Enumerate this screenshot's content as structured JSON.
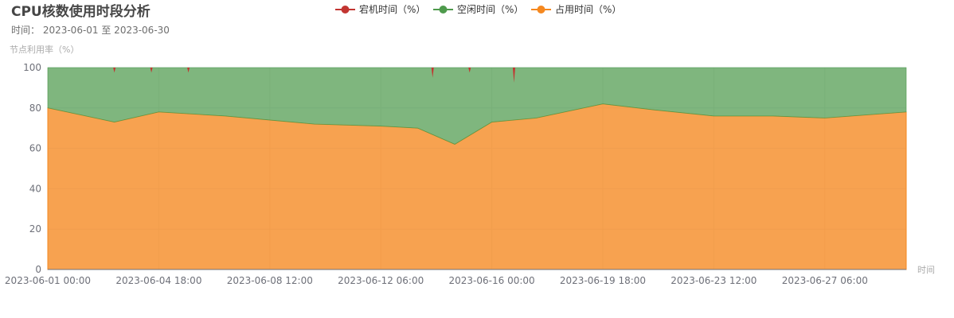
{
  "title": "CPU核数使用时段分析",
  "subtitle": "时间： 2023-06-01 至 2023-06-30",
  "chart_data": {
    "type": "area",
    "stacked": true,
    "ylabel": "节点利用率（%）",
    "xlabel": "时间",
    "ylim": [
      0,
      100
    ],
    "yticks": [
      0,
      20,
      40,
      60,
      80,
      100
    ],
    "xticks": [
      "2023-06-01 00:00",
      "2023-06-04 18:00",
      "2023-06-08 12:00",
      "2023-06-12 06:00",
      "2023-06-16 00:00",
      "2023-06-19 18:00",
      "2023-06-23 12:00",
      "2023-06-27 06:00"
    ],
    "legend_position": "top-center",
    "series": [
      {
        "name": "宕机时间（%）",
        "color": "#c23531",
        "x": [
          "2023-06-03 06:00",
          "2023-06-04 12:00",
          "2023-06-05 18:00",
          "2023-06-14 00:00",
          "2023-06-15 06:00",
          "2023-06-16 18:00"
        ],
        "values": [
          1,
          1,
          1,
          2,
          1,
          3
        ]
      },
      {
        "name": "空闲时间（%）",
        "color": "#4e9a4c",
        "x": [
          "2023-06-01 00:00",
          "2023-06-03 06:00",
          "2023-06-04 18:00",
          "2023-06-07 00:00",
          "2023-06-08 12:00",
          "2023-06-10 00:00",
          "2023-06-12 06:00",
          "2023-06-13 12:00",
          "2023-06-14 18:00",
          "2023-06-16 00:00",
          "2023-06-17 12:00",
          "2023-06-19 18:00",
          "2023-06-21 12:00",
          "2023-06-23 12:00",
          "2023-06-25 12:00",
          "2023-06-27 06:00",
          "2023-06-30 00:00"
        ],
        "values": [
          20,
          27,
          22,
          24,
          26,
          28,
          29,
          30,
          38,
          27,
          25,
          18,
          21,
          24,
          24,
          25,
          22
        ]
      },
      {
        "name": "占用时间（%）",
        "color": "#f5881f",
        "x": [
          "2023-06-01 00:00",
          "2023-06-03 06:00",
          "2023-06-04 18:00",
          "2023-06-07 00:00",
          "2023-06-08 12:00",
          "2023-06-10 00:00",
          "2023-06-12 06:00",
          "2023-06-13 12:00",
          "2023-06-14 18:00",
          "2023-06-16 00:00",
          "2023-06-17 12:00",
          "2023-06-19 18:00",
          "2023-06-21 12:00",
          "2023-06-23 12:00",
          "2023-06-25 12:00",
          "2023-06-27 06:00",
          "2023-06-30 00:00"
        ],
        "values": [
          80,
          73,
          78,
          76,
          74,
          72,
          71,
          70,
          62,
          73,
          75,
          82,
          79,
          76,
          76,
          75,
          78
        ]
      }
    ]
  }
}
